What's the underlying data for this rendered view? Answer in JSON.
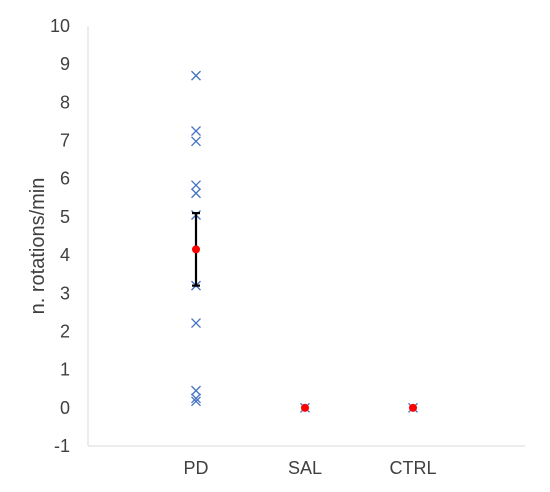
{
  "chart_data": {
    "type": "scatter",
    "title": "",
    "xlabel": "",
    "ylabel": "n. rotations/min",
    "ylim": [
      -1,
      10
    ],
    "yticks": [
      -1,
      0,
      1,
      2,
      3,
      4,
      5,
      6,
      7,
      8,
      9,
      10
    ],
    "categories": [
      "PD",
      "SAL",
      "CTRL"
    ],
    "grid": false,
    "legend": "none",
    "series": [
      {
        "role": "individual",
        "marker": "x",
        "color": "#4472C4",
        "points": [
          {
            "category": "PD",
            "y": 8.7
          },
          {
            "category": "PD",
            "y": 7.25
          },
          {
            "category": "PD",
            "y": 6.98
          },
          {
            "category": "PD",
            "y": 5.83
          },
          {
            "category": "PD",
            "y": 5.62
          },
          {
            "category": "PD",
            "y": 5.05
          },
          {
            "category": "PD",
            "y": 3.2
          },
          {
            "category": "PD",
            "y": 2.22
          },
          {
            "category": "PD",
            "y": 0.45
          },
          {
            "category": "PD",
            "y": 0.25
          },
          {
            "category": "PD",
            "y": 0.17
          },
          {
            "category": "SAL",
            "y": 0.0
          },
          {
            "category": "CTRL",
            "y": 0.0
          }
        ]
      },
      {
        "role": "mean",
        "marker": "circle",
        "color": "#FF0000",
        "error_color": "#000000",
        "points": [
          {
            "category": "PD",
            "y": 4.15,
            "err_low": 3.2,
            "err_high": 5.1
          },
          {
            "category": "SAL",
            "y": 0.0
          },
          {
            "category": "CTRL",
            "y": 0.0
          }
        ]
      }
    ]
  }
}
